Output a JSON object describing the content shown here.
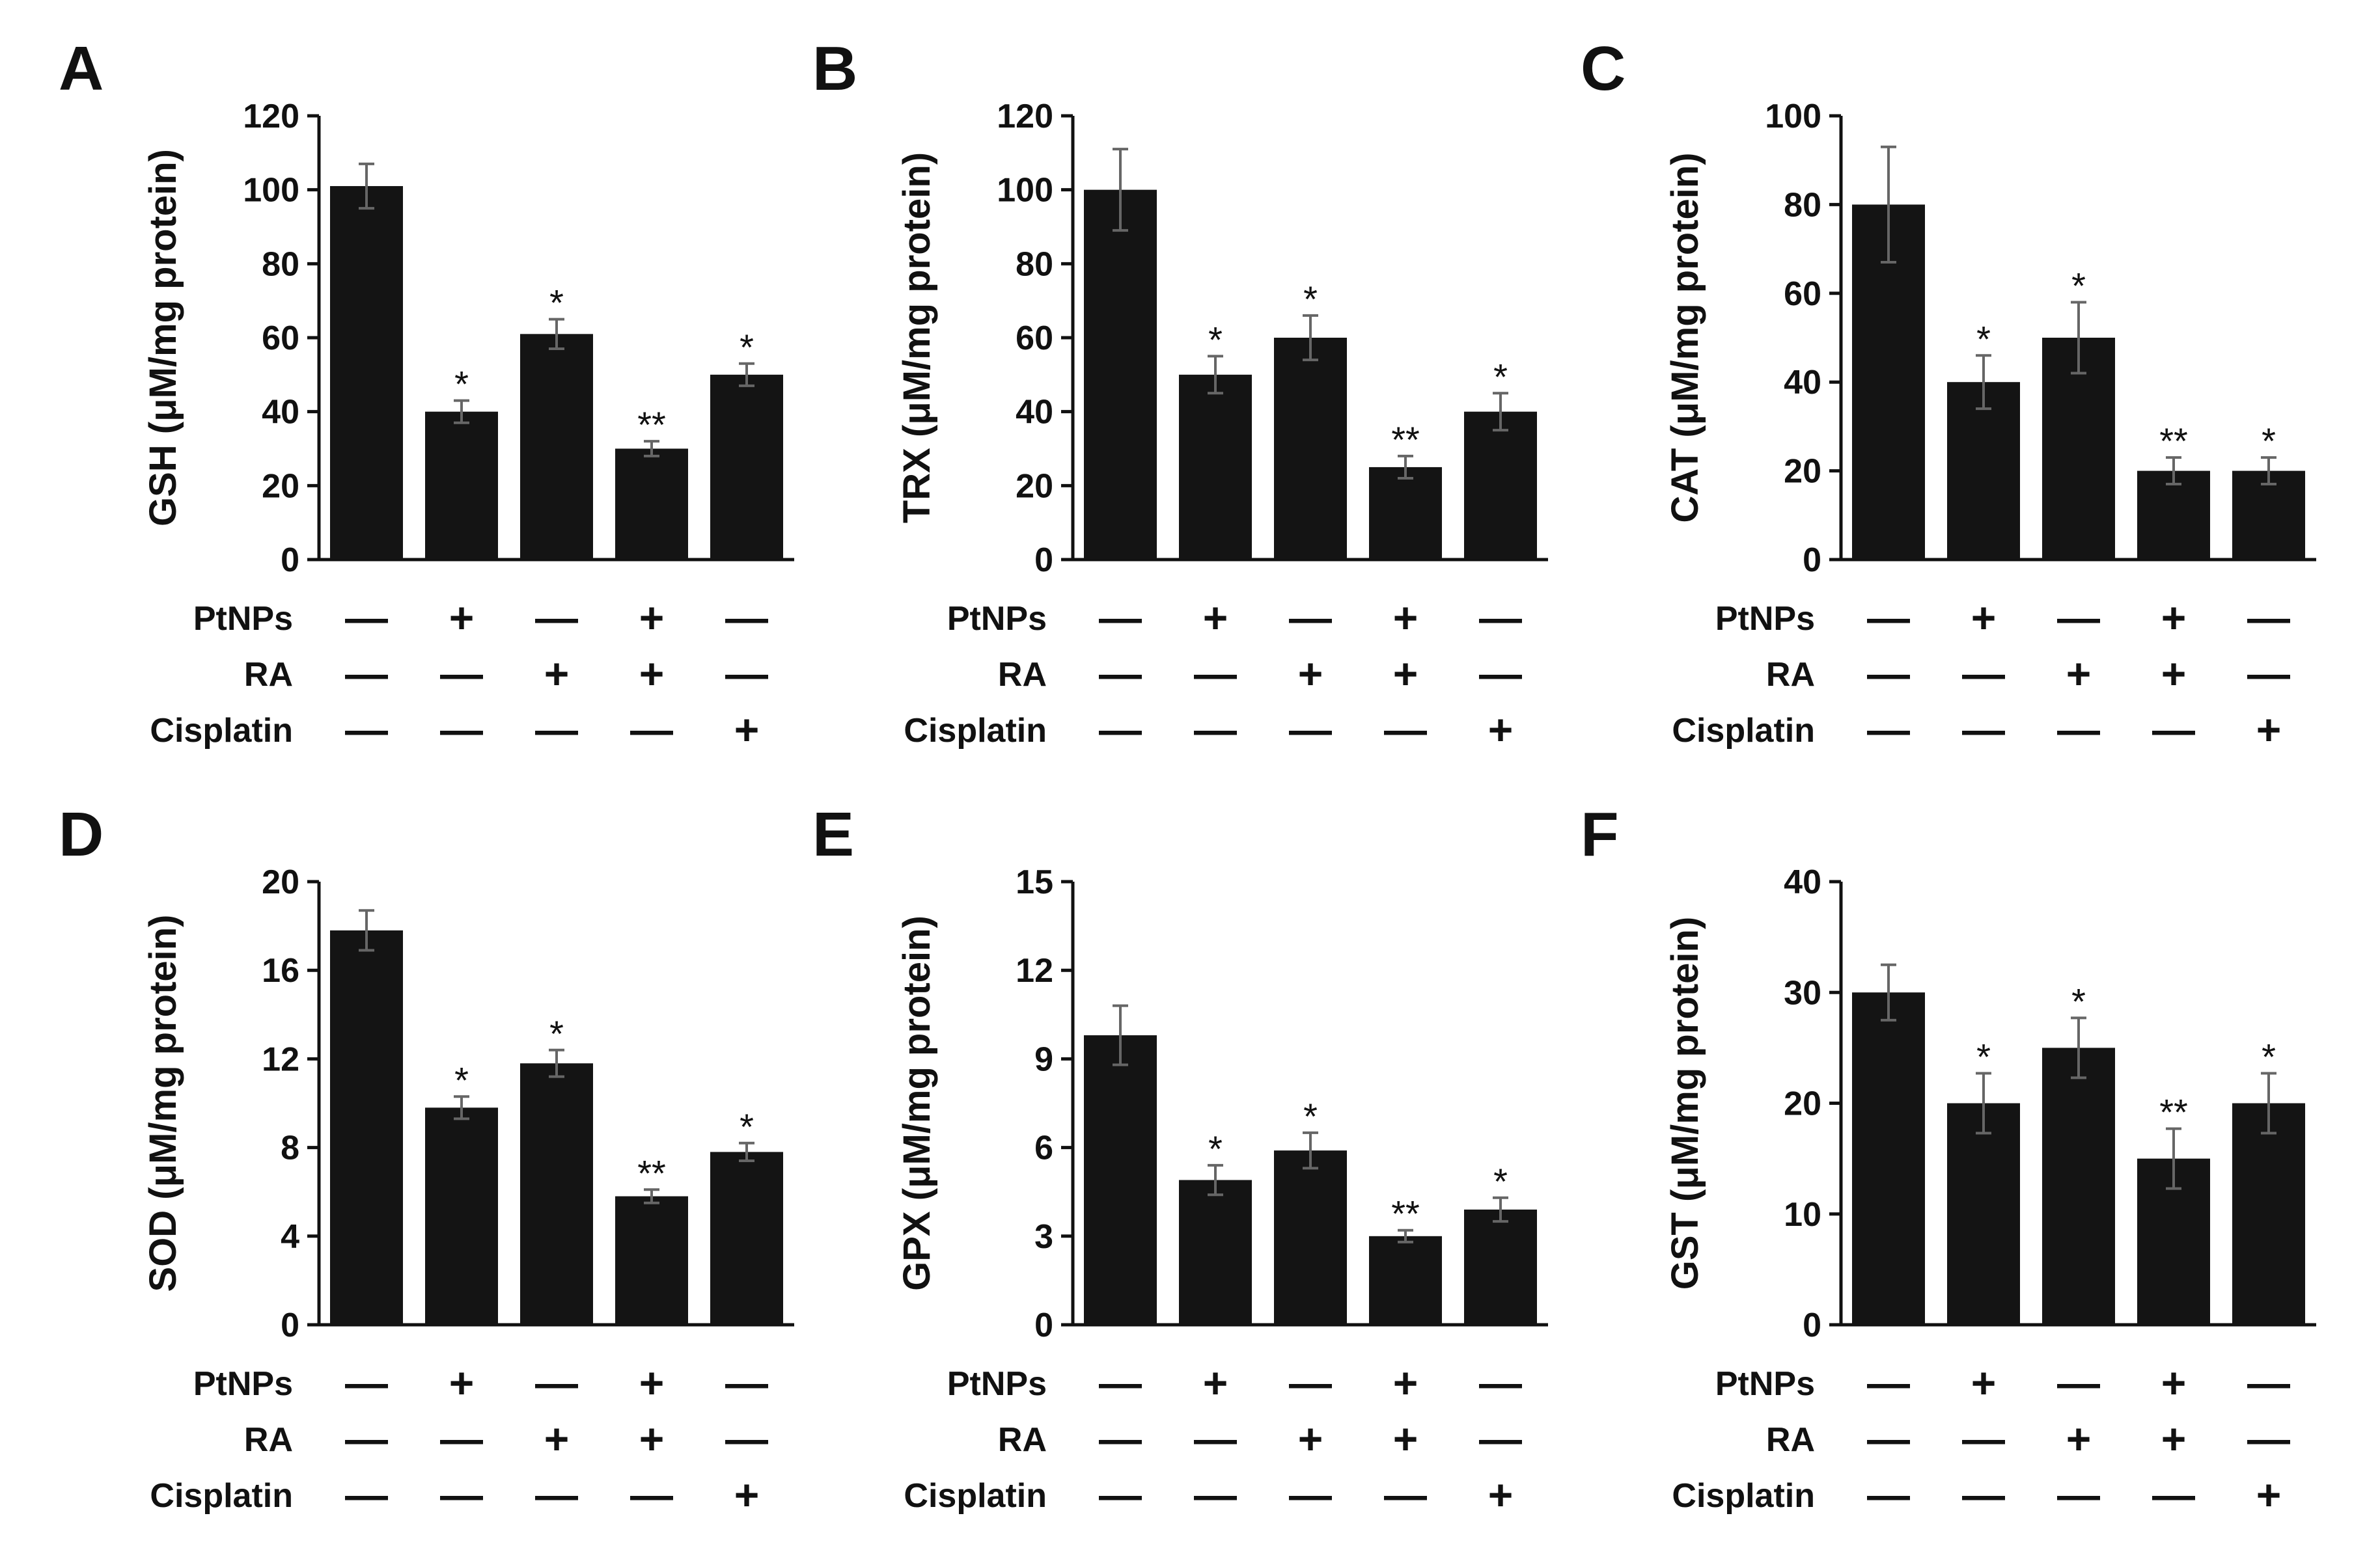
{
  "factors": {
    "labels": [
      "PtNPs",
      "RA",
      "Cisplatin"
    ],
    "signs": [
      [
        "—",
        "+",
        "—",
        "+",
        "—"
      ],
      [
        "—",
        "—",
        "+",
        "+",
        "—"
      ],
      [
        "—",
        "—",
        "—",
        "—",
        "+"
      ]
    ]
  },
  "colors": {
    "bar": "#141414",
    "error": "#666666",
    "axis": "#111111"
  },
  "chart_data": [
    {
      "type": "bar",
      "panel": "A",
      "ylabel": "GSH (μM/mg protein)",
      "yticks": [
        0,
        20,
        40,
        60,
        80,
        100,
        120
      ],
      "ylim": [
        0,
        120
      ],
      "values": [
        101,
        40,
        61,
        30,
        50
      ],
      "errors": [
        6,
        3,
        4,
        2,
        3
      ],
      "significance": [
        "",
        "*",
        "*",
        "**",
        "*"
      ]
    },
    {
      "type": "bar",
      "panel": "B",
      "ylabel": "TRX (μM/mg protein)",
      "yticks": [
        0,
        20,
        40,
        60,
        80,
        100,
        120
      ],
      "ylim": [
        0,
        120
      ],
      "values": [
        100,
        50,
        60,
        25,
        40
      ],
      "errors": [
        11,
        5,
        6,
        3,
        5
      ],
      "significance": [
        "",
        "*",
        "*",
        "**",
        "*"
      ]
    },
    {
      "type": "bar",
      "panel": "C",
      "ylabel": "CAT (μM/mg protein)",
      "yticks": [
        0,
        20,
        40,
        60,
        80,
        100
      ],
      "ylim": [
        0,
        100
      ],
      "values": [
        80,
        40,
        50,
        20,
        20
      ],
      "errors": [
        13,
        6,
        8,
        3,
        3
      ],
      "significance": [
        "",
        "*",
        "*",
        "**",
        "*"
      ]
    },
    {
      "type": "bar",
      "panel": "D",
      "ylabel": "SOD (μM/mg protein)",
      "yticks": [
        0,
        4,
        8,
        12,
        16,
        20
      ],
      "ylim": [
        0,
        20
      ],
      "values": [
        17.8,
        9.8,
        11.8,
        5.8,
        7.8
      ],
      "errors": [
        0.9,
        0.5,
        0.6,
        0.3,
        0.4
      ],
      "significance": [
        "",
        "*",
        "*",
        "**",
        "*"
      ]
    },
    {
      "type": "bar",
      "panel": "E",
      "ylabel": "GPX (μM/mg protein)",
      "yticks": [
        0,
        3,
        6,
        9,
        12,
        15
      ],
      "ylim": [
        0,
        15
      ],
      "values": [
        9.8,
        4.9,
        5.9,
        3.0,
        3.9
      ],
      "errors": [
        1.0,
        0.5,
        0.6,
        0.2,
        0.4
      ],
      "significance": [
        "",
        "*",
        "*",
        "**",
        "*"
      ]
    },
    {
      "type": "bar",
      "panel": "F",
      "ylabel": "GST (μM/mg protein)",
      "yticks": [
        0,
        10,
        20,
        30,
        40
      ],
      "ylim": [
        0,
        40
      ],
      "values": [
        30,
        20,
        25,
        15,
        20
      ],
      "errors": [
        2.5,
        2.7,
        2.7,
        2.7,
        2.7
      ],
      "significance": [
        "",
        "*",
        "*",
        "**",
        "*"
      ]
    }
  ]
}
